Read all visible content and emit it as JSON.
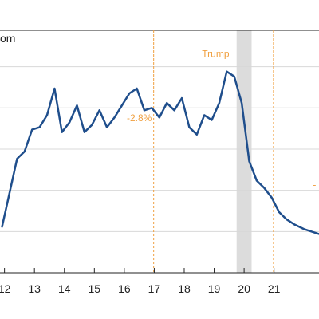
{
  "chart_data": {
    "type": "line",
    "title_fragment": "om",
    "x_tick_labels": [
      "12",
      "13",
      "14",
      "15",
      "16",
      "17",
      "18",
      "19",
      "20",
      "21"
    ],
    "xlim": [
      2011.85,
      2022.5
    ],
    "ylim": [
      0,
      10
    ],
    "grid": true,
    "series": [
      {
        "color": "#1f4e8c",
        "points": [
          [
            2011.92,
            1.9
          ],
          [
            2012.17,
            3.3
          ],
          [
            2012.42,
            4.7
          ],
          [
            2012.67,
            5.0
          ],
          [
            2012.92,
            5.9
          ],
          [
            2013.17,
            6.0
          ],
          [
            2013.42,
            6.5
          ],
          [
            2013.67,
            7.6
          ],
          [
            2013.92,
            5.8
          ],
          [
            2014.17,
            6.2
          ],
          [
            2014.42,
            6.9
          ],
          [
            2014.67,
            5.8
          ],
          [
            2014.92,
            6.1
          ],
          [
            2015.17,
            6.7
          ],
          [
            2015.42,
            6.0
          ],
          [
            2015.67,
            6.4
          ],
          [
            2015.92,
            6.9
          ],
          [
            2016.17,
            7.4
          ],
          [
            2016.42,
            7.6
          ],
          [
            2016.67,
            6.7
          ],
          [
            2016.92,
            6.8
          ],
          [
            2017.17,
            6.4
          ],
          [
            2017.42,
            7.0
          ],
          [
            2017.67,
            6.7
          ],
          [
            2017.92,
            7.2
          ],
          [
            2018.17,
            6.0
          ],
          [
            2018.42,
            5.7
          ],
          [
            2018.67,
            6.5
          ],
          [
            2018.92,
            6.3
          ],
          [
            2019.17,
            7.0
          ],
          [
            2019.42,
            8.3
          ],
          [
            2019.67,
            8.1
          ],
          [
            2019.92,
            7.0
          ],
          [
            2020.17,
            4.6
          ],
          [
            2020.42,
            3.8
          ],
          [
            2020.67,
            3.5
          ],
          [
            2020.92,
            3.1
          ],
          [
            2021.17,
            2.5
          ],
          [
            2021.42,
            2.2
          ],
          [
            2021.67,
            2.0
          ],
          [
            2022.0,
            1.8
          ],
          [
            2022.5,
            1.6
          ]
        ]
      }
    ],
    "recession_shading": [
      2019.75,
      2020.25
    ],
    "vertical_lines": [
      {
        "x": 2016.98,
        "color": "#f0a040"
      },
      {
        "x": 2020.98,
        "color": "#f0a040"
      }
    ],
    "annotations": [
      {
        "text": "Trump",
        "x": 2019.05,
        "y": 8.9,
        "color": "#f0a040"
      },
      {
        "text": "-2.8%",
        "x": 2016.5,
        "y": 6.25,
        "color": "#f0a040"
      },
      {
        "text": "-",
        "x": 2022.35,
        "y": 3.5,
        "color": "#f0a040"
      }
    ],
    "colors": {
      "line": "#1f4e8c",
      "grid": "#d8d8d8",
      "shade": "#dcdcdc",
      "vline": "#f0a040",
      "annotation": "#f0a040"
    }
  }
}
